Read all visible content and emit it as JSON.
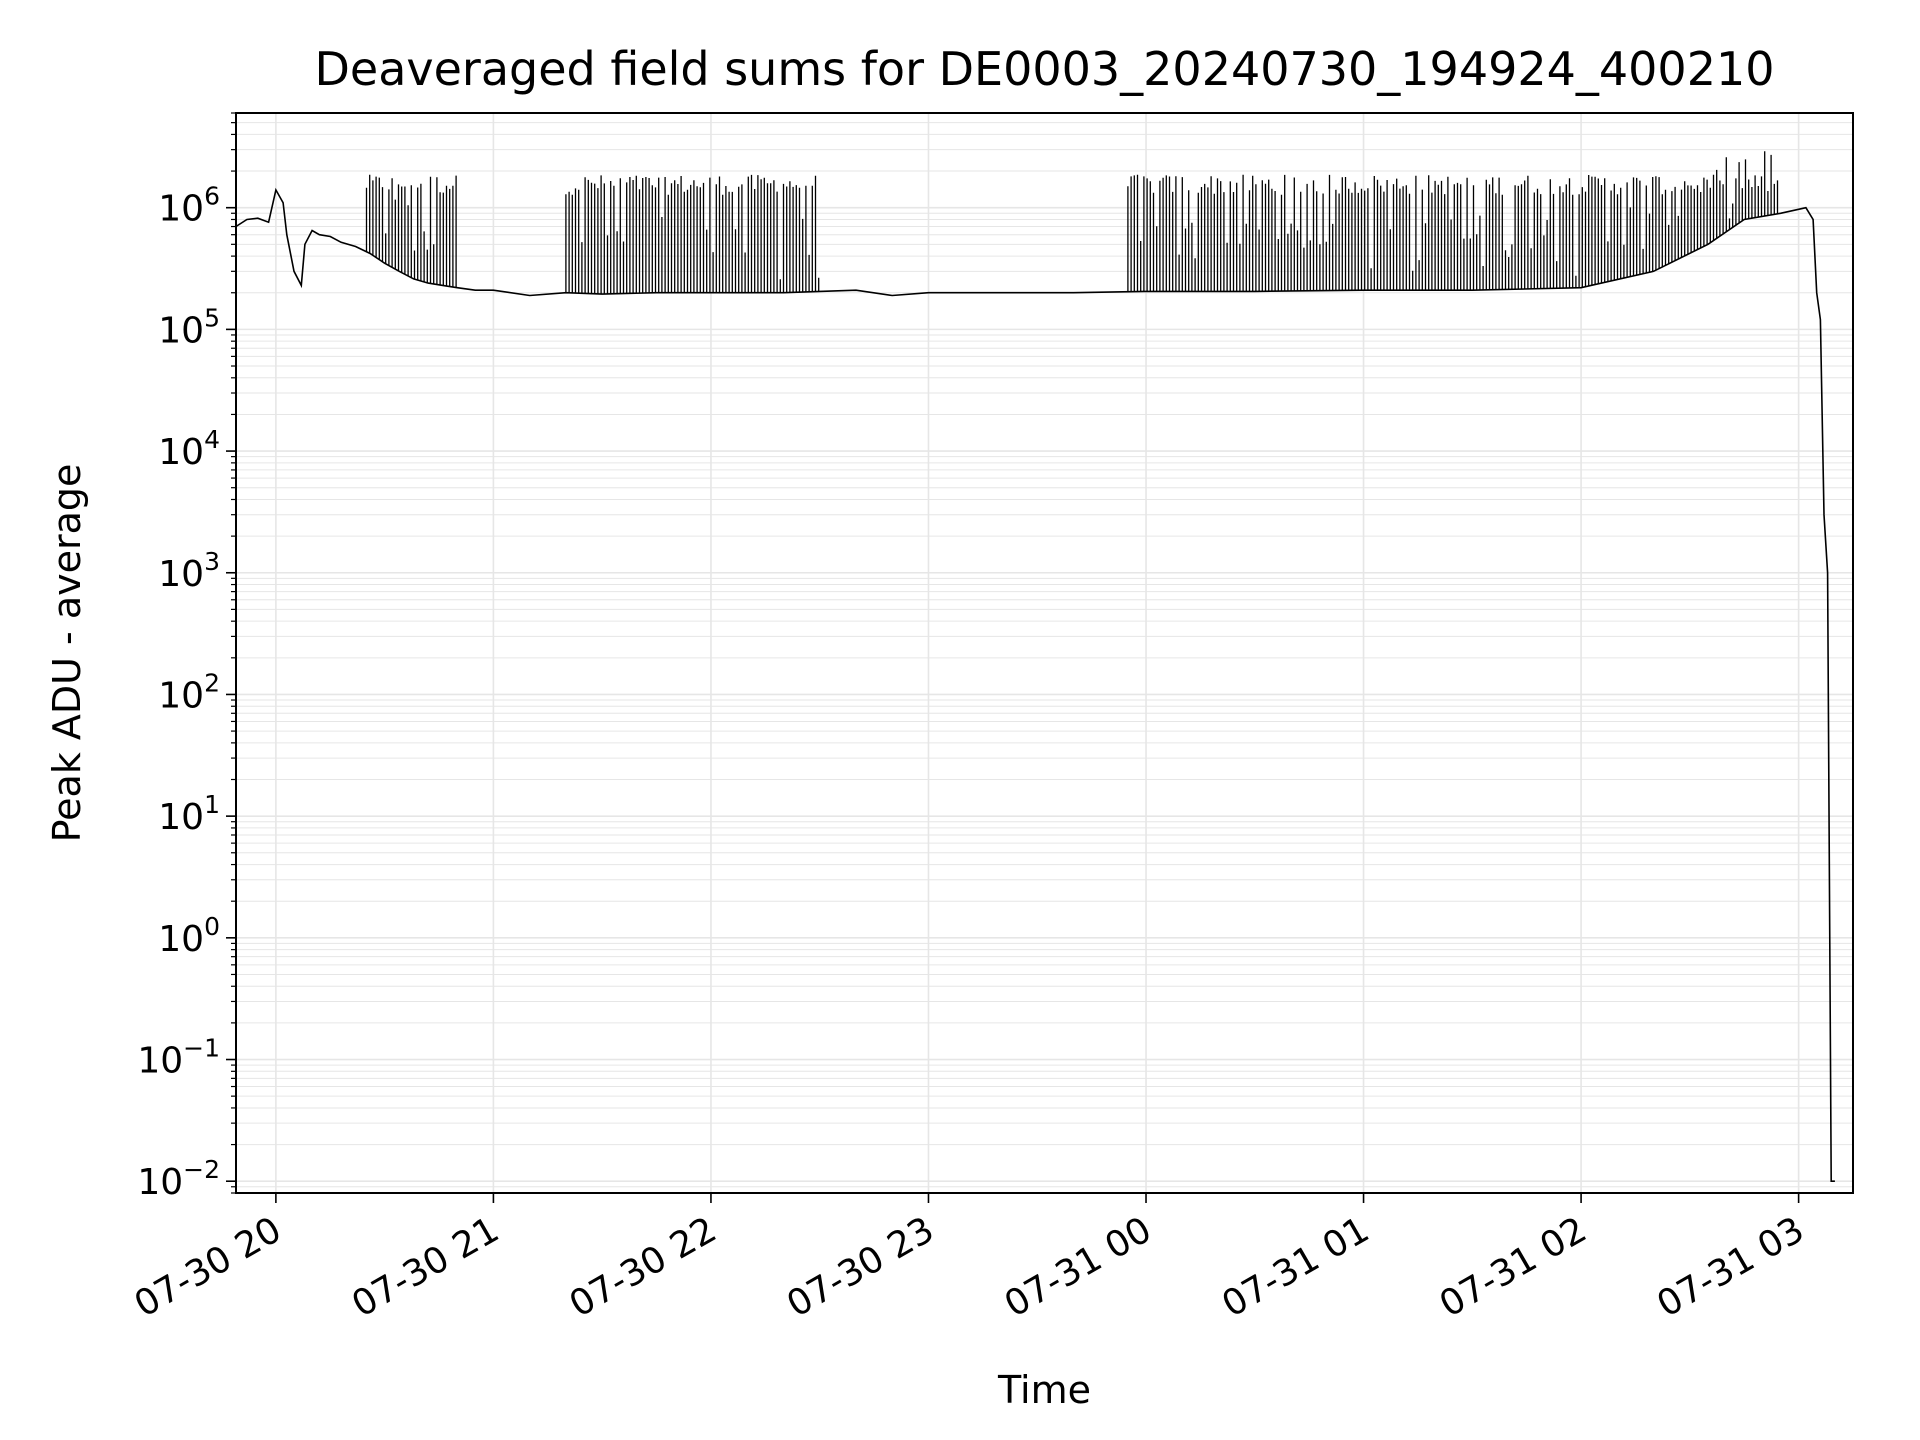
{
  "chart_data": {
    "type": "line",
    "title": "Deaveraged field sums for DE0003_20240730_194924_400210",
    "xlabel": "Time",
    "ylabel": "Peak ADU - average",
    "yscale": "log",
    "ylim": [
      0.008,
      6000000
    ],
    "xlim": [
      "2024-07-30 19:49",
      "2024-07-31 03:15"
    ],
    "grid": true,
    "line_color": "#000000",
    "grid_color": "#e6e6e6",
    "x_ticks": [
      {
        "label": "07-30 20",
        "value": "2024-07-30 20:00"
      },
      {
        "label": "07-30 21",
        "value": "2024-07-30 21:00"
      },
      {
        "label": "07-30 22",
        "value": "2024-07-30 22:00"
      },
      {
        "label": "07-30 23",
        "value": "2024-07-30 23:00"
      },
      {
        "label": "07-31 00",
        "value": "2024-07-31 00:00"
      },
      {
        "label": "07-31 01",
        "value": "2024-07-31 01:00"
      },
      {
        "label": "07-31 02",
        "value": "2024-07-31 02:00"
      },
      {
        "label": "07-31 03",
        "value": "2024-07-31 03:00"
      }
    ],
    "y_ticks": [
      {
        "base": "10",
        "exp": "6",
        "value": 1000000
      },
      {
        "base": "10",
        "exp": "5",
        "value": 100000
      },
      {
        "base": "10",
        "exp": "4",
        "value": 10000
      },
      {
        "base": "10",
        "exp": "3",
        "value": 1000
      },
      {
        "base": "10",
        "exp": "2",
        "value": 100
      },
      {
        "base": "10",
        "exp": "1",
        "value": 10
      },
      {
        "base": "10",
        "exp": "0",
        "value": 1
      },
      {
        "base": "10",
        "exp": "−1",
        "value": 0.1
      },
      {
        "base": "10",
        "exp": "−2",
        "value": 0.01
      }
    ],
    "series": [
      {
        "x": [
          "2024-07-30 19:49",
          "2024-07-30 19:52",
          "2024-07-30 19:55",
          "2024-07-30 19:58",
          "2024-07-30 20:00",
          "2024-07-30 20:02",
          "2024-07-30 20:03",
          "2024-07-30 20:05",
          "2024-07-30 20:07",
          "2024-07-30 20:08",
          "2024-07-30 20:10",
          "2024-07-30 20:12",
          "2024-07-30 20:15",
          "2024-07-30 20:18",
          "2024-07-30 20:22",
          "2024-07-30 20:26",
          "2024-07-30 20:30",
          "2024-07-30 20:34",
          "2024-07-30 20:38",
          "2024-07-30 20:42",
          "2024-07-30 20:46",
          "2024-07-30 20:50",
          "2024-07-30 20:55",
          "2024-07-30 21:00",
          "2024-07-30 21:10",
          "2024-07-30 21:20",
          "2024-07-30 21:30",
          "2024-07-30 21:45",
          "2024-07-30 22:00",
          "2024-07-30 22:20",
          "2024-07-30 22:40",
          "2024-07-30 22:50",
          "2024-07-30 23:00",
          "2024-07-30 23:20",
          "2024-07-30 23:40",
          "2024-07-31 00:00",
          "2024-07-31 00:30",
          "2024-07-31 01:00",
          "2024-07-31 01:30",
          "2024-07-31 02:00",
          "2024-07-31 02:20",
          "2024-07-31 02:35",
          "2024-07-31 02:45",
          "2024-07-31 02:55",
          "2024-07-31 03:02",
          "2024-07-31 03:04",
          "2024-07-31 03:05",
          "2024-07-31 03:06",
          "2024-07-31 03:07",
          "2024-07-31 03:08",
          "2024-07-31 03:09",
          "2024-07-31 03:10"
        ],
        "y": [
          700000,
          800000,
          820000,
          760000,
          1400000,
          1100000,
          600000,
          300000,
          230000,
          500000,
          650000,
          600000,
          580000,
          520000,
          480000,
          420000,
          350000,
          300000,
          260000,
          240000,
          230000,
          220000,
          210000,
          210000,
          190000,
          200000,
          195000,
          200000,
          200000,
          200000,
          210000,
          190000,
          200000,
          200000,
          200000,
          205000,
          205000,
          210000,
          210000,
          220000,
          300000,
          500000,
          800000,
          900000,
          1000000,
          800000,
          200000,
          120000,
          3000,
          1000,
          0.01,
          0.01
        ]
      }
    ],
    "spikes": {
      "description_segments": [
        {
          "from": "2024-07-30 20:25",
          "to": "2024-07-30 20:50",
          "top": 1700000
        },
        {
          "from": "2024-07-30 21:20",
          "to": "2024-07-30 22:30",
          "top": 1700000
        },
        {
          "from": "2024-07-30 23:55",
          "to": "2024-07-31 02:55",
          "top": 1700000
        }
      ]
    }
  }
}
